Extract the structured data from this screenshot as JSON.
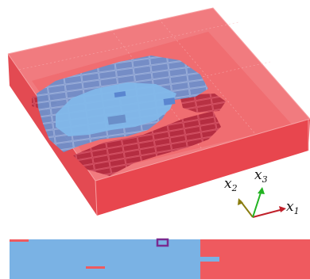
{
  "axes": {
    "x1": {
      "label": "x",
      "sub": "1",
      "color": "#c0202a"
    },
    "x2": {
      "label": "x",
      "sub": "2",
      "color": "#8a7d10"
    },
    "x3": {
      "label": "x",
      "sub": "3",
      "color": "#22b322"
    }
  },
  "colors": {
    "box_red": "#e8464e",
    "box_red_light": "#f07a7e",
    "inner_blue": "#7fb2e6",
    "inner_blue_dark": "#6a8fc9",
    "dark_red_blocks": "#b6283c",
    "slice_red": "#ef5a5f",
    "slice_blue": "#7ab2e4",
    "marker_purple": "#7a2a8f"
  }
}
